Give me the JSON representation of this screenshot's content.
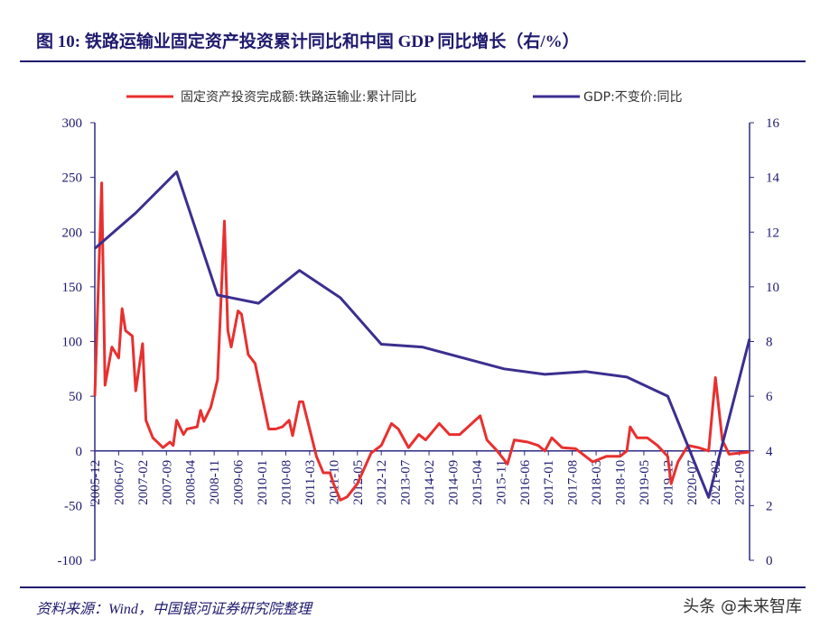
{
  "chart_data": {
    "type": "line",
    "title": "图 10:  铁路运输业固定资产投资累计同比和中国 GDP 同比增长（右/%）",
    "source": "资料来源：Wind，中国银河证券研究院整理",
    "watermark": "头条 @未来智库",
    "categories": [
      "2005-12",
      "2006-07",
      "2007-02",
      "2007-09",
      "2008-04",
      "2008-11",
      "2009-06",
      "2010-01",
      "2010-08",
      "2011-03",
      "2011-10",
      "2012-05",
      "2012-12",
      "2013-07",
      "2014-02",
      "2014-09",
      "2015-04",
      "2015-11",
      "2016-06",
      "2017-01",
      "2017-08",
      "2018-03",
      "2018-10",
      "2019-05",
      "2019-12",
      "2020-07",
      "2021-02",
      "2021-09"
    ],
    "xlim": [
      "2005-12",
      "2021-12"
    ],
    "ylim": [
      -100,
      300
    ],
    "yticks": [
      -100,
      -50,
      0,
      50,
      100,
      150,
      200,
      250,
      300
    ],
    "y2lim": [
      0,
      16
    ],
    "y2ticks": [
      0,
      2,
      4,
      6,
      8,
      10,
      12,
      14,
      16
    ],
    "series": [
      {
        "name": "固定资产投资完成额:铁路运输业:累计同比",
        "color": "#e8302f",
        "x": [
          "2005-12",
          "2006-02",
          "2006-03",
          "2006-05",
          "2006-07",
          "2006-08",
          "2006-09",
          "2006-11",
          "2006-12",
          "2007-02",
          "2007-03",
          "2007-05",
          "2007-08",
          "2007-10",
          "2007-11",
          "2007-12",
          "2008-02",
          "2008-03",
          "2008-06",
          "2008-07",
          "2008-08",
          "2008-10",
          "2008-12",
          "2009-02",
          "2009-03",
          "2009-04",
          "2009-06",
          "2009-07",
          "2009-09",
          "2009-11",
          "2010-01",
          "2010-03",
          "2010-05",
          "2010-07",
          "2010-09",
          "2010-10",
          "2010-12",
          "2011-01",
          "2011-03",
          "2011-05",
          "2011-07",
          "2011-09",
          "2011-10",
          "2011-12",
          "2012-02",
          "2012-05",
          "2012-09",
          "2012-12",
          "2013-03",
          "2013-05",
          "2013-08",
          "2013-11",
          "2014-01",
          "2014-05",
          "2014-08",
          "2014-11",
          "2015-05",
          "2015-07",
          "2015-10",
          "2016-01",
          "2016-03",
          "2016-07",
          "2016-10",
          "2016-12",
          "2017-02",
          "2017-05",
          "2017-09",
          "2018-02",
          "2018-06",
          "2018-10",
          "2018-12",
          "2019-01",
          "2019-03",
          "2019-06",
          "2019-09",
          "2019-12",
          "2020-01",
          "2020-03",
          "2020-06",
          "2020-09",
          "2020-12",
          "2021-02",
          "2021-04",
          "2021-06",
          "2021-12"
        ],
        "values": [
          50,
          245,
          60,
          95,
          85,
          130,
          110,
          105,
          55,
          98,
          28,
          12,
          3,
          8,
          5,
          28,
          15,
          20,
          22,
          37,
          27,
          40,
          65,
          210,
          110,
          95,
          128,
          125,
          88,
          80,
          50,
          20,
          20,
          22,
          28,
          14,
          45,
          45,
          20,
          -5,
          -20,
          -20,
          -30,
          -45,
          -42,
          -30,
          -2,
          5,
          25,
          20,
          3,
          15,
          10,
          25,
          15,
          15,
          32,
          10,
          0,
          -12,
          10,
          8,
          5,
          0,
          12,
          3,
          2,
          -10,
          -5,
          -5,
          0,
          22,
          12,
          12,
          5,
          -5,
          -30,
          -10,
          5,
          3,
          0,
          67,
          10,
          -3,
          -1
        ]
      },
      {
        "name": "GDP:不变价:同比",
        "color": "#3b2f8f",
        "axis": "y2",
        "x": [
          "2005-12",
          "2006-12",
          "2007-12",
          "2008-12",
          "2009-12",
          "2010-12",
          "2011-12",
          "2012-12",
          "2013-12",
          "2014-12",
          "2015-12",
          "2016-12",
          "2017-12",
          "2018-12",
          "2019-12",
          "2020-12",
          "2021-12"
        ],
        "values": [
          11.4,
          12.7,
          14.2,
          9.7,
          9.4,
          10.6,
          9.6,
          7.9,
          7.8,
          7.4,
          7.0,
          6.8,
          6.9,
          6.7,
          6.0,
          2.3,
          8.1
        ]
      }
    ]
  }
}
